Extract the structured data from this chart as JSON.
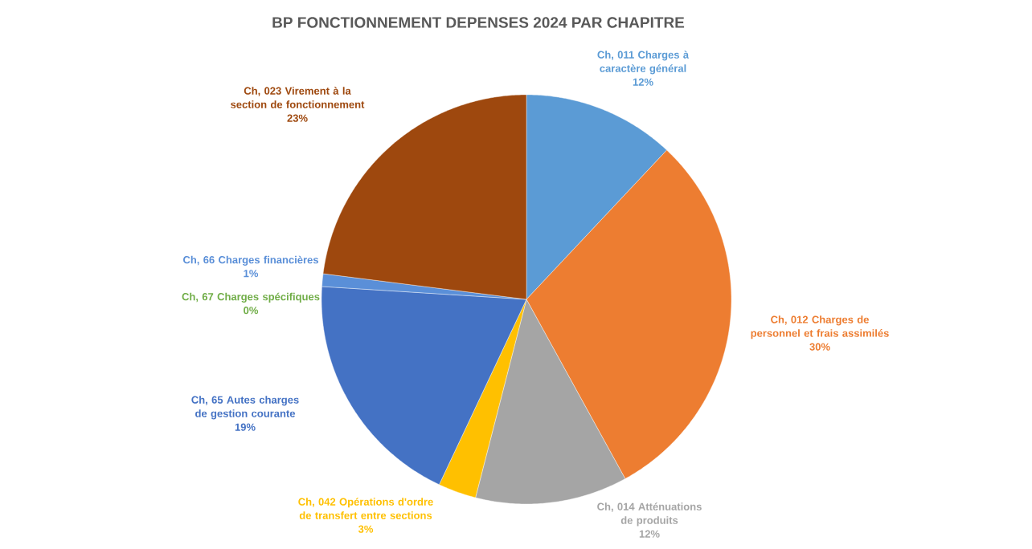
{
  "chart_data": {
    "type": "pie",
    "title": "BP FONCTIONNEMENT DEPENSES 2024 PAR CHAPITRE",
    "categories": [
      "Ch, 011 Charges à caractère général",
      "Ch, 012 Charges de personnel et frais assimilés",
      "Ch, 014 Atténuations de produits",
      "Ch, 042 Opérations d'ordre de transfert entre sections",
      "Ch, 65 Autes charges de gestion courante",
      "Ch, 67 Charges spécifiques",
      "Ch, 66 Charges financières",
      "Ch, 023 Virement à la section de fonctionnement"
    ],
    "values": [
      12,
      30,
      12,
      3,
      19,
      0,
      1,
      23
    ],
    "value_labels": [
      "12%",
      "30%",
      "12%",
      "3%",
      "19%",
      "0%",
      "1%",
      "23%"
    ],
    "colors": [
      "#5b9bd5",
      "#ed7d31",
      "#a5a5a5",
      "#ffc000",
      "#4472c4",
      "#70ad47",
      "#5a8fd8",
      "#9e480e"
    ],
    "legend": false
  }
}
